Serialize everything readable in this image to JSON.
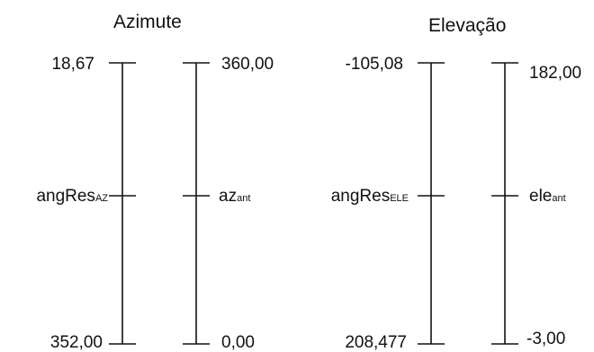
{
  "azimute": {
    "title": "Azimute",
    "left_scale": {
      "top": "18,67",
      "mid_base": "angRes",
      "mid_sub": "AZ",
      "bottom": "352,00"
    },
    "right_scale": {
      "top": "360,00",
      "mid_base": "az",
      "mid_sub": "ant",
      "bottom": "0,00"
    }
  },
  "elevacao": {
    "title": "Elevação",
    "left_scale": {
      "top": "-105,08",
      "mid_base": "angRes",
      "mid_sub": "ELE",
      "bottom": "208,477"
    },
    "right_scale": {
      "top": "182,00",
      "mid_base": "ele",
      "mid_sub": "ant",
      "bottom": "-3,00"
    }
  },
  "stroke_color": "#111111"
}
